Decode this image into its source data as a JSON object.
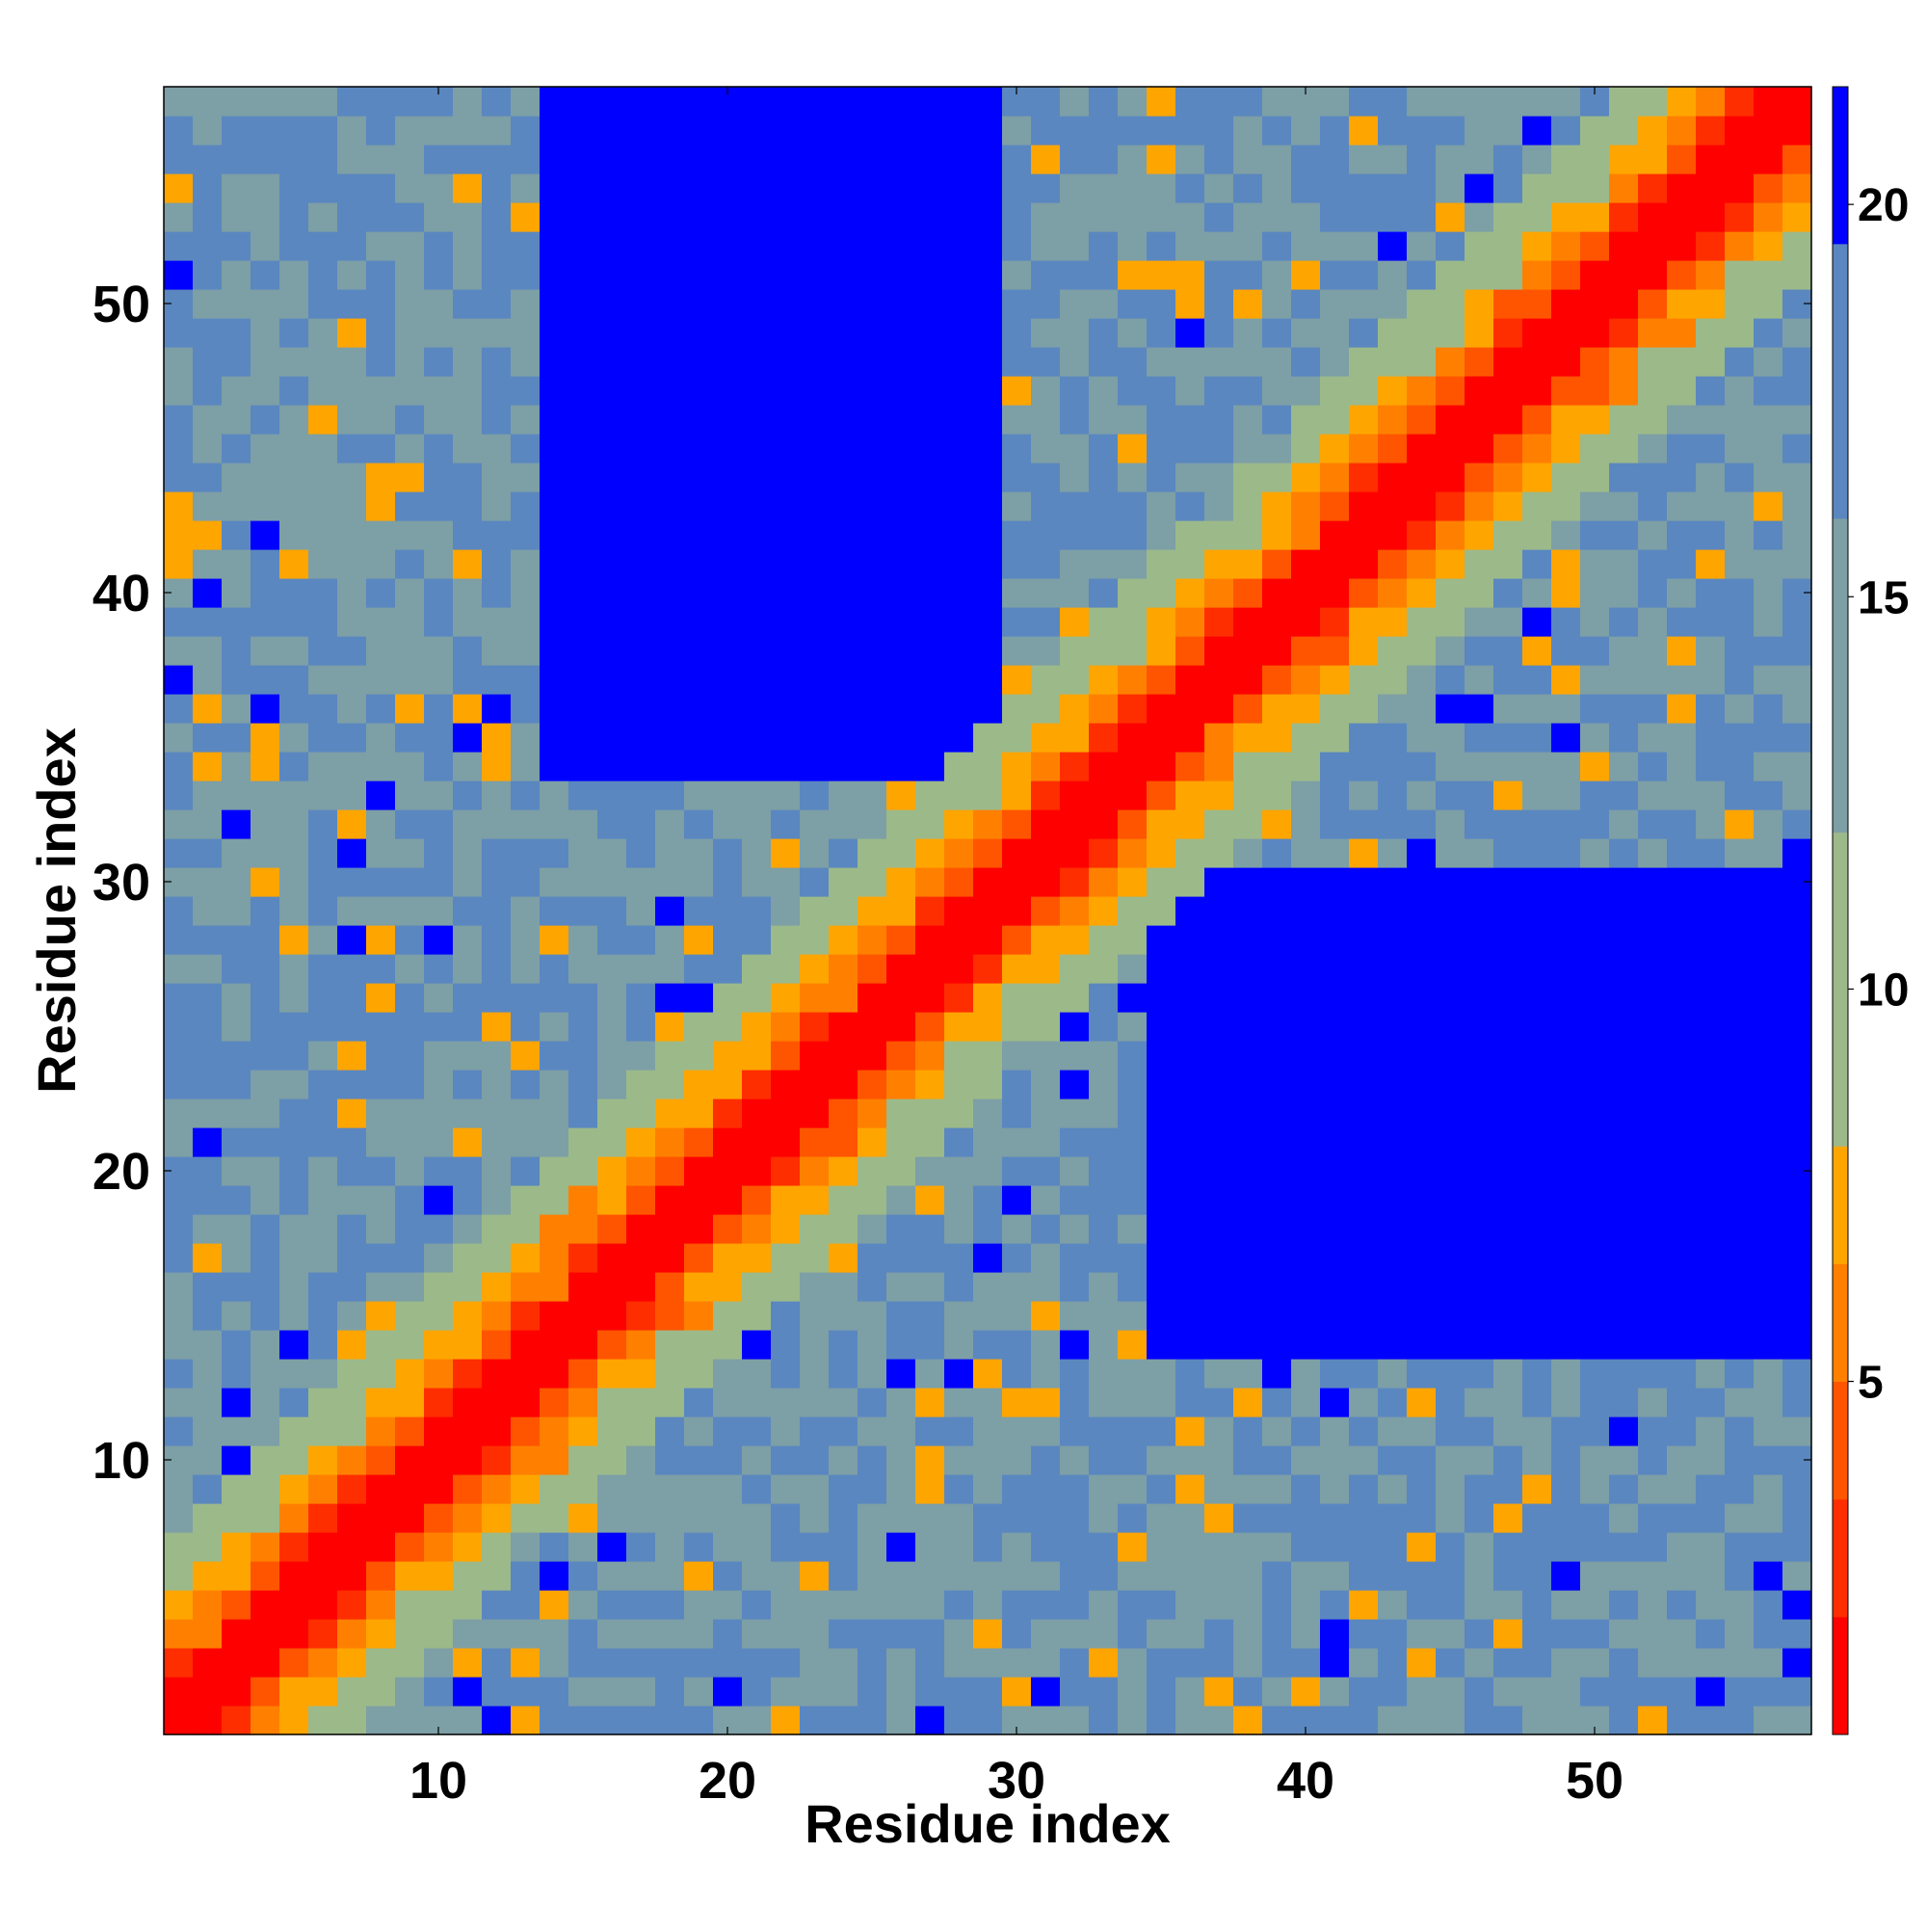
{
  "chart_data": {
    "type": "heatmap",
    "xlabel": "Residue index",
    "ylabel": "Residue index",
    "n": 57,
    "xlim": [
      0.5,
      57.5
    ],
    "ylim": [
      0.5,
      57.5
    ],
    "xticks": [
      10,
      20,
      30,
      40,
      50
    ],
    "yticks": [
      10,
      20,
      30,
      40,
      50
    ],
    "colorbar": {
      "ticks": [
        5,
        10,
        15,
        20
      ],
      "range": [
        0.5,
        21.5
      ],
      "levels": [
        {
          "max": 2.0,
          "color": "#ff0000"
        },
        {
          "max": 3.5,
          "color": "#ff2e00"
        },
        {
          "max": 5.0,
          "color": "#ff5500"
        },
        {
          "max": 6.5,
          "color": "#ff8000"
        },
        {
          "max": 8.0,
          "color": "#ffa500"
        },
        {
          "max": 12.0,
          "color": "#9cb98a"
        },
        {
          "max": 16.0,
          "color": "#7d9fa6"
        },
        {
          "max": 19.5,
          "color": "#5a87c0"
        },
        {
          "max": 99,
          "color": "#0000ff"
        }
      ]
    },
    "regions": [
      {
        "name": "upper-left blue block",
        "x_range": [
          14,
          29
        ],
        "y_range": [
          34,
          57
        ],
        "value": 21
      },
      {
        "name": "lower-right blue block",
        "x_range": [
          35,
          57
        ],
        "y_range": [
          14,
          30
        ],
        "value": 21
      }
    ],
    "model": {
      "description": "distance map: value grows with |i-j|; diagonal contact",
      "diagonal_value": 1,
      "near_values": [
        1,
        1,
        4,
        6,
        7.5,
        10,
        11
      ],
      "far_base": 13
    }
  }
}
